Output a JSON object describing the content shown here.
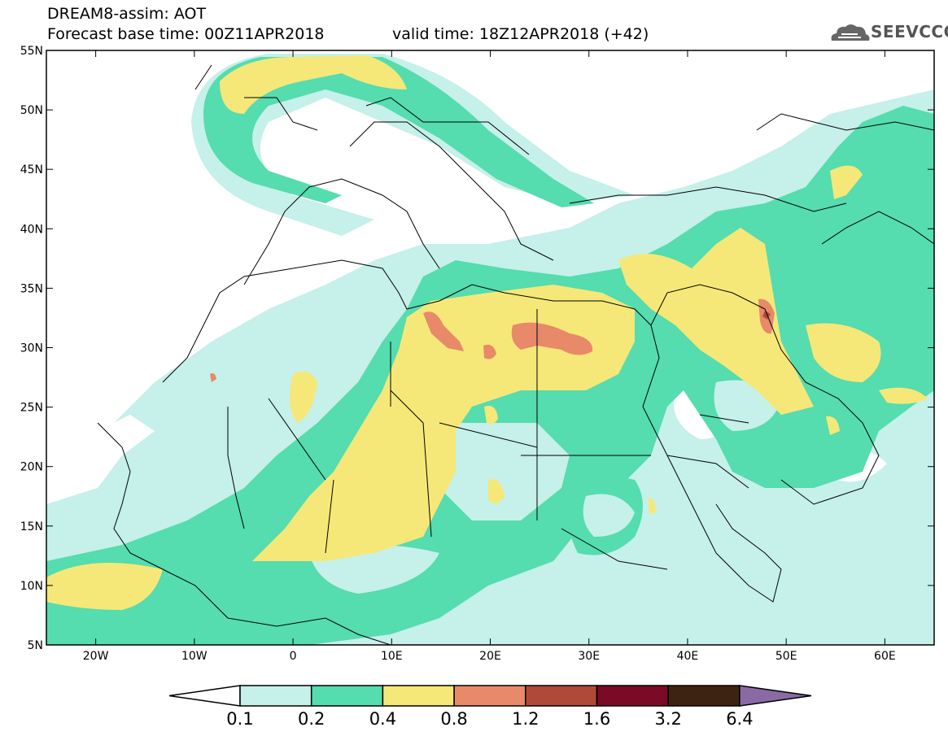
{
  "header": {
    "model_title": "DREAM8-assim: AOT",
    "base_time": "Forecast base time: 00Z11APR2018",
    "valid_time": "valid time: 18Z12APR2018 (+42)",
    "logo_text": "SEEVCCC"
  },
  "map": {
    "lon_range": [
      -25,
      65
    ],
    "lat_range": [
      5,
      55
    ],
    "lon_ticks": [
      {
        "value": -20,
        "label": "20W"
      },
      {
        "value": -10,
        "label": "10W"
      },
      {
        "value": 0,
        "label": "0"
      },
      {
        "value": 10,
        "label": "10E"
      },
      {
        "value": 20,
        "label": "20E"
      },
      {
        "value": 30,
        "label": "30E"
      },
      {
        "value": 40,
        "label": "40E"
      },
      {
        "value": 50,
        "label": "50E"
      },
      {
        "value": 60,
        "label": "60E"
      }
    ],
    "lat_ticks": [
      {
        "value": 55,
        "label": "55N"
      },
      {
        "value": 50,
        "label": "50N"
      },
      {
        "value": 45,
        "label": "45N"
      },
      {
        "value": 40,
        "label": "40N"
      },
      {
        "value": 35,
        "label": "35N"
      },
      {
        "value": 30,
        "label": "30N"
      },
      {
        "value": 25,
        "label": "25N"
      },
      {
        "value": 20,
        "label": "20N"
      },
      {
        "value": 15,
        "label": "15N"
      },
      {
        "value": 10,
        "label": "10N"
      },
      {
        "value": 5,
        "label": "5N"
      }
    ]
  },
  "legend": {
    "levels": [
      "0.1",
      "0.2",
      "0.4",
      "0.8",
      "1.2",
      "1.6",
      "3.2",
      "6.4"
    ],
    "colors": [
      "#ffffff",
      "#c6f0ea",
      "#55dcaf",
      "#f5e878",
      "#e8896a",
      "#b04a38",
      "#7a0a25",
      "#3d2412",
      "#8a6aa5"
    ]
  },
  "colors": {
    "c01": "#c6f0ea",
    "c02": "#55dcaf",
    "c04": "#f5e878",
    "c08": "#e8896a",
    "c12": "#b04a38"
  }
}
